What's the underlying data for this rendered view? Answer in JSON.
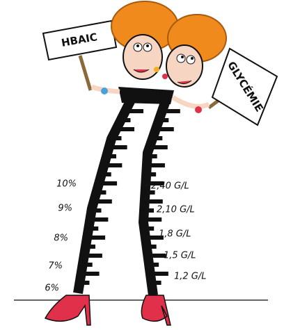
{
  "signs": {
    "left": "HBAIC",
    "right": "GLYCÉMIE"
  },
  "left_scale": {
    "labels": [
      "10%",
      "9%",
      "8%",
      "7%",
      "6%"
    ]
  },
  "right_scale": {
    "labels": [
      "2,40 G/L",
      "2,10 G/L",
      "1,8 G/L",
      "1,5 G/L",
      "1,2 G/L"
    ]
  }
}
